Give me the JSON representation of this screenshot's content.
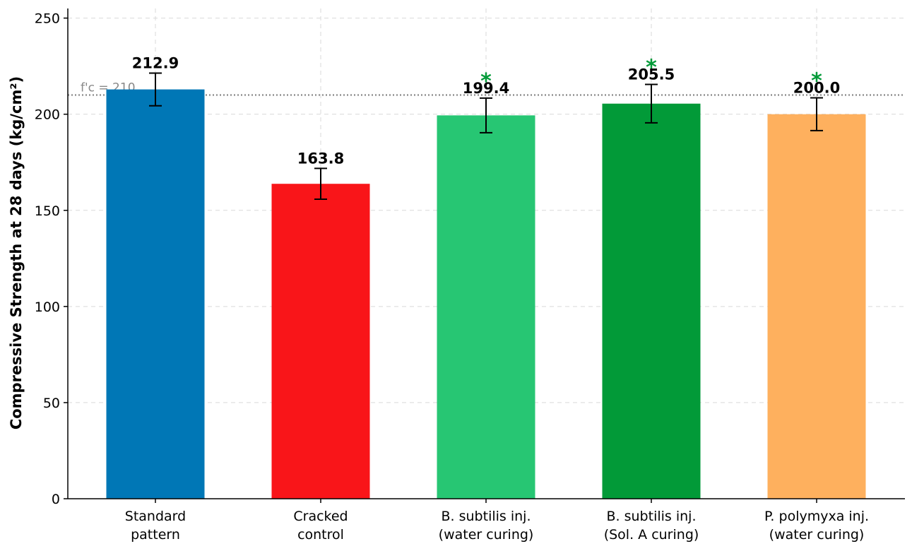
{
  "chart_data": {
    "type": "bar",
    "title": "",
    "xlabel": "",
    "ylabel": "Compressive Strength at 28 days (kg/cm²)",
    "ylim": [
      0,
      255
    ],
    "yticks": [
      0,
      50,
      100,
      150,
      200,
      250
    ],
    "grid": true,
    "categories": [
      [
        "Standard",
        "pattern"
      ],
      [
        "Cracked",
        "control"
      ],
      [
        "B. subtilis inj.",
        "(water curing)"
      ],
      [
        "B. subtilis inj.",
        "(Sol. A curing)"
      ],
      [
        "P. polymyxa inj.",
        "(water curing)"
      ]
    ],
    "values": [
      212.9,
      163.8,
      199.4,
      205.5,
      200.0
    ],
    "value_labels": [
      "212.9",
      "163.8",
      "199.4",
      "205.5",
      "200.0"
    ],
    "errors": [
      8.5,
      8.0,
      9.0,
      10.0,
      8.5
    ],
    "colors": [
      "#0077b6",
      "#f91519",
      "#27c673",
      "#029a38",
      "#feb05e"
    ],
    "significance": [
      "",
      "",
      "*",
      "*",
      "*"
    ],
    "significance_color": "#029a38",
    "reference_line": {
      "value": 210,
      "label": "f'c = 210",
      "color": "#888888"
    }
  }
}
